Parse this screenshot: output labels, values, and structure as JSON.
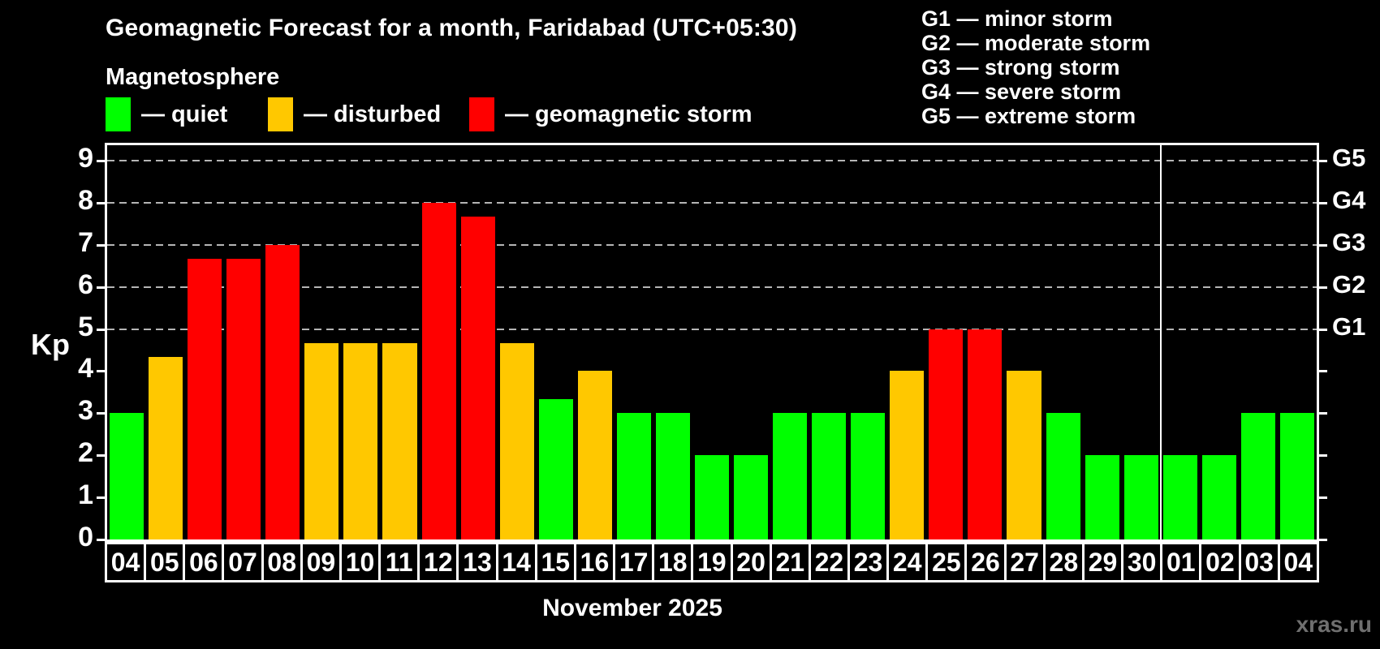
{
  "header": {
    "title": "Geomagnetic Forecast for a month, Faridabad (UTC+05:30)",
    "subtitle": "Magnetosphere"
  },
  "legend": {
    "items": [
      {
        "name": "quiet",
        "label": "— quiet",
        "color": "#00ff00"
      },
      {
        "name": "disturbed",
        "label": "— disturbed",
        "color": "#ffc800"
      },
      {
        "name": "storm",
        "label": "— geomagnetic storm",
        "color": "#ff0000"
      }
    ]
  },
  "g_legend": {
    "items": [
      "G1 — minor storm",
      "G2 — moderate storm",
      "G3 — strong storm",
      "G4 — severe storm",
      "G5 — extreme storm"
    ]
  },
  "chart_data": {
    "type": "bar",
    "title": "Geomagnetic Forecast for a month, Faridabad (UTC+05:30)",
    "ylabel": "Kp",
    "ylim": [
      0,
      9.4
    ],
    "grid": "dashed horizontal at Kp 5-9",
    "gridlines_at": [
      5,
      6,
      7,
      8,
      9
    ],
    "y_ticks": [
      0,
      1,
      2,
      3,
      4,
      5,
      6,
      7,
      8,
      9
    ],
    "right_axis_labels": {
      "5": "G1",
      "6": "G2",
      "7": "G3",
      "8": "G4",
      "9": "G5"
    },
    "categories": [
      "04",
      "05",
      "06",
      "07",
      "08",
      "09",
      "10",
      "11",
      "12",
      "13",
      "14",
      "15",
      "16",
      "17",
      "18",
      "19",
      "20",
      "21",
      "22",
      "23",
      "24",
      "25",
      "26",
      "27",
      "28",
      "29",
      "30",
      "01",
      "02",
      "03",
      "04"
    ],
    "values": [
      3,
      4.33,
      6.67,
      6.67,
      7,
      4.67,
      4.67,
      4.67,
      8,
      7.67,
      4.67,
      3.33,
      4,
      3,
      3,
      2,
      2,
      3,
      3,
      3,
      4,
      5,
      5,
      4,
      3,
      2,
      2,
      2,
      2,
      3,
      3
    ],
    "levels": [
      "quiet",
      "disturbed",
      "storm",
      "storm",
      "storm",
      "disturbed",
      "disturbed",
      "disturbed",
      "storm",
      "storm",
      "disturbed",
      "quiet",
      "disturbed",
      "quiet",
      "quiet",
      "quiet",
      "quiet",
      "quiet",
      "quiet",
      "quiet",
      "disturbed",
      "storm",
      "storm",
      "disturbed",
      "quiet",
      "quiet",
      "quiet",
      "quiet",
      "quiet",
      "quiet",
      "quiet"
    ],
    "level_colors": {
      "quiet": "#00ff00",
      "disturbed": "#ffc800",
      "storm": "#ff0000"
    },
    "month_label": "November 2025",
    "month_boundary_after_category_index": 26
  },
  "watermark": "xras.ru"
}
